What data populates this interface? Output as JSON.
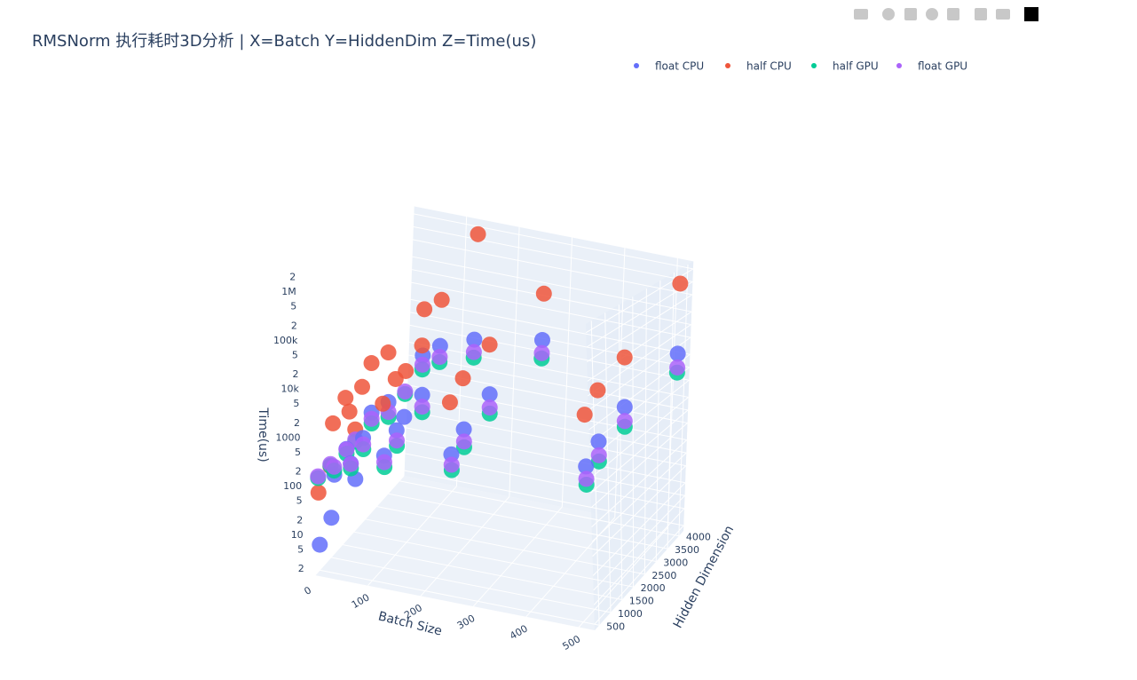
{
  "chart_data": {
    "type": "scatter3d",
    "title": "RMSNorm 执行耗时3D分析 | X=Batch Y=HiddenDim Z=Time(us)",
    "x_label": "Batch Size",
    "y_label": "Hidden Dimension",
    "z_label": "Time(us)",
    "xlim": [
      0,
      530
    ],
    "xticks": [
      0,
      100,
      200,
      300,
      400,
      500
    ],
    "ylim": [
      300,
      4200
    ],
    "yticks": [
      500,
      1000,
      1500,
      2000,
      2500,
      3000,
      3500,
      4000
    ],
    "zlim": [
      1.5,
      3000000
    ],
    "zscale": "log",
    "zticks": [
      2,
      5,
      10,
      {
        "value": 20,
        "label": "2"
      },
      {
        "value": 50,
        "label": "5"
      },
      100,
      {
        "value": 200,
        "label": "2"
      },
      {
        "value": 500,
        "label": "5"
      },
      1000,
      {
        "value": 2000,
        "label": "2"
      },
      {
        "value": 5000,
        "label": "5"
      },
      {
        "value": 10000,
        "label": "10k"
      },
      {
        "value": 20000,
        "label": "2"
      },
      {
        "value": 50000,
        "label": "5"
      },
      {
        "value": 100000,
        "label": "100k"
      },
      {
        "value": 200000,
        "label": "2"
      },
      {
        "value": 500000,
        "label": "5"
      },
      {
        "value": 1000000,
        "label": "1M"
      },
      {
        "value": 2000000,
        "label": "2"
      }
    ],
    "grid": true,
    "legend": "top-right",
    "series": [
      {
        "name": "float CPU",
        "color": "#636efa",
        "x": [
          1,
          1,
          1,
          1,
          32,
          32,
          32,
          32,
          64,
          64,
          64,
          64,
          128,
          128,
          128,
          128,
          256,
          256,
          256,
          256,
          512,
          512,
          512,
          512
        ],
        "y": [
          512,
          1024,
          2048,
          4096,
          512,
          1024,
          2048,
          4096,
          512,
          1024,
          2048,
          4096,
          512,
          1024,
          2048,
          4096,
          512,
          1024,
          2048,
          4096,
          512,
          1024,
          2048,
          4096
        ],
        "z": [
          5,
          10,
          20,
          41,
          164,
          328,
          655,
          1311,
          328,
          655,
          1311,
          2621,
          655,
          1311,
          2621,
          5243,
          1311,
          2621,
          5243,
          10486,
          2621,
          5243,
          10486,
          20972
        ]
      },
      {
        "name": "half CPU",
        "color": "#ef553b",
        "x": [
          1,
          1,
          1,
          1,
          32,
          32,
          32,
          32,
          64,
          64,
          64,
          64,
          128,
          128,
          128,
          128,
          256,
          256,
          256,
          256,
          512,
          512,
          512,
          512
        ],
        "y": [
          512,
          1024,
          2048,
          4096,
          512,
          1024,
          2048,
          4096,
          512,
          1024,
          2048,
          4096,
          512,
          1024,
          2048,
          4096,
          512,
          1024,
          2048,
          4096,
          512,
          1024,
          2048,
          4096
        ],
        "z": [
          60,
          120,
          240,
          480,
          1900,
          3900,
          7800,
          15700,
          3900,
          7800,
          15700,
          31000,
          7800,
          15700,
          31000,
          1500000,
          15700,
          31000,
          63000,
          126000,
          31000,
          63000,
          126000,
          900000
        ]
      },
      {
        "name": "half GPU",
        "color": "#00cc96",
        "x": [
          1,
          1,
          1,
          1,
          32,
          32,
          32,
          32,
          64,
          64,
          64,
          64,
          128,
          128,
          128,
          128,
          256,
          256,
          256,
          256,
          512,
          512,
          512,
          512
        ],
        "y": [
          512,
          1024,
          2048,
          4096,
          512,
          1024,
          2048,
          4096,
          512,
          1024,
          2048,
          4096,
          512,
          1024,
          2048,
          4096,
          512,
          1024,
          2048,
          4096,
          512,
          1024,
          2048,
          4096
        ],
        "z": [
          120,
          125,
          130,
          140,
          200,
          260,
          380,
          620,
          260,
          380,
          620,
          1100,
          380,
          620,
          1100,
          2000,
          620,
          1100,
          2000,
          3900,
          1100,
          2000,
          3900,
          7600
        ]
      },
      {
        "name": "float GPU",
        "color": "#ab63fa",
        "x": [
          1,
          1,
          1,
          1,
          32,
          32,
          32,
          32,
          64,
          64,
          64,
          64,
          128,
          128,
          128,
          128,
          256,
          256,
          256,
          256,
          512,
          512,
          512,
          512
        ],
        "y": [
          512,
          1024,
          2048,
          4096,
          512,
          1024,
          2048,
          4096,
          512,
          1024,
          2048,
          4096,
          512,
          1024,
          2048,
          4096,
          512,
          1024,
          2048,
          4096,
          512,
          1024,
          2048,
          4096
        ],
        "z": [
          130,
          135,
          145,
          160,
          240,
          320,
          480,
          800,
          320,
          480,
          800,
          1450,
          480,
          800,
          1450,
          2700,
          800,
          1450,
          2700,
          5200,
          1450,
          2700,
          5200,
          10000
        ]
      }
    ]
  }
}
